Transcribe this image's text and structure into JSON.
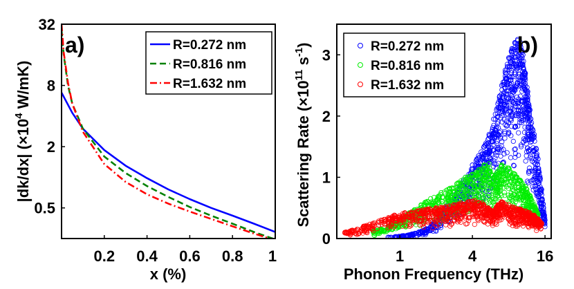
{
  "chart_data": [
    {
      "type": "line",
      "panel_label": "a)",
      "xlabel": "x (%)",
      "ylabel": "|dk/dx| (×10",
      "ylabel_exp": "4",
      "ylabel_unit": " W/mK)",
      "xlim": [
        0,
        1
      ],
      "ylim": [
        0.25,
        32
      ],
      "yscale": "log2",
      "xticks": [
        0.2,
        0.4,
        0.6,
        0.8,
        1
      ],
      "xtick_labels": [
        "0.2",
        "0.4",
        "0.6",
        "0.8",
        "1"
      ],
      "yticks": [
        0.5,
        2,
        8,
        32
      ],
      "ytick_labels": [
        "0.5",
        "2",
        "8",
        "32"
      ],
      "legend_position": "top-right",
      "series": [
        {
          "name": "R=0.272 nm",
          "color": "#0000ff",
          "dash": "solid",
          "x": [
            0.0,
            0.05,
            0.1,
            0.2,
            0.3,
            0.4,
            0.5,
            0.6,
            0.7,
            0.8,
            0.9,
            1.0
          ],
          "y": [
            6.8,
            4.3,
            3.0,
            1.85,
            1.3,
            0.98,
            0.76,
            0.61,
            0.5,
            0.42,
            0.35,
            0.29
          ]
        },
        {
          "name": "R=0.816 nm",
          "color": "#008000",
          "dash": "dashed",
          "x": [
            0.0,
            0.01,
            0.03,
            0.05,
            0.1,
            0.2,
            0.3,
            0.4,
            0.5,
            0.6,
            0.7,
            0.8,
            0.9,
            1.0
          ],
          "y": [
            28,
            16,
            8.0,
            5.3,
            3.0,
            1.6,
            1.1,
            0.82,
            0.64,
            0.51,
            0.42,
            0.35,
            0.29,
            0.245
          ]
        },
        {
          "name": "R=1.632 nm",
          "color": "#ff0000",
          "dash": "dashdot",
          "x": [
            0.0,
            0.01,
            0.03,
            0.05,
            0.1,
            0.2,
            0.3,
            0.4,
            0.5,
            0.6,
            0.7,
            0.8,
            0.9,
            1.0
          ],
          "y": [
            32,
            17,
            8.5,
            5.3,
            2.8,
            1.35,
            0.9,
            0.68,
            0.55,
            0.46,
            0.39,
            0.33,
            0.28,
            0.24
          ]
        }
      ]
    },
    {
      "type": "scatter",
      "panel_label": "b)",
      "xlabel": "Phonon Frequency (THz)",
      "ylabel": "Scattering Rate (×10",
      "ylabel_exp": "11",
      "ylabel_unit": " s",
      "ylabel_exp2": "-1",
      "ylabel_close": ")",
      "xlim": [
        0.3,
        18
      ],
      "xscale": "log2",
      "ylim": [
        0,
        3.5
      ],
      "xticks": [
        1,
        4,
        16
      ],
      "xtick_labels": [
        "1",
        "4",
        "16"
      ],
      "yticks": [
        0,
        1,
        2,
        3
      ],
      "ytick_labels": [
        "0",
        "1",
        "2",
        "3"
      ],
      "legend_position": "top-left",
      "series": [
        {
          "name": "R=0.272 nm",
          "color": "#0000ff",
          "x": [
            0.8,
            1.2,
            1.6,
            2.0,
            2.5,
            3.0,
            3.5,
            4.0,
            4.5,
            5.0,
            5.5,
            6.0,
            6.5,
            7.0,
            7.5,
            8.0,
            8.5,
            9.0,
            9.5,
            10.0,
            10.5,
            11.0,
            11.5,
            12.0,
            13.0,
            14.0,
            15.0,
            16.0
          ],
          "y": [
            0.02,
            0.06,
            0.14,
            0.3,
            0.55,
            0.8,
            1.0,
            1.2,
            1.35,
            1.5,
            1.7,
            1.95,
            2.2,
            2.5,
            2.75,
            2.95,
            3.1,
            3.2,
            3.25,
            3.2,
            3.0,
            2.7,
            2.4,
            2.1,
            1.7,
            1.3,
            0.8,
            0.3
          ]
        },
        {
          "name": "R=0.816 nm",
          "color": "#00ee00",
          "x": [
            0.6,
            0.8,
            1.0,
            1.2,
            1.5,
            1.8,
            2.2,
            2.6,
            3.0,
            3.5,
            4.0,
            4.5,
            5.0,
            5.5,
            6.0,
            6.5,
            7.0,
            8.0,
            9.0,
            10.0,
            11.0,
            12.0,
            13.0,
            14.0
          ],
          "y": [
            0.12,
            0.2,
            0.3,
            0.42,
            0.55,
            0.65,
            0.75,
            0.82,
            0.9,
            1.0,
            1.05,
            1.12,
            1.2,
            1.22,
            1.0,
            1.1,
            1.2,
            1.15,
            1.05,
            0.95,
            0.85,
            0.7,
            0.55,
            0.4
          ]
        },
        {
          "name": "R=1.632 nm",
          "color": "#ff0000",
          "x": [
            0.35,
            0.5,
            0.7,
            0.9,
            1.1,
            1.4,
            1.7,
            2.0,
            2.4,
            2.8,
            3.2,
            3.7,
            4.2,
            4.8,
            5.4,
            6.0,
            6.5,
            7.0,
            8.0,
            9.0,
            10.0,
            11.0,
            12.0,
            13.0,
            14.0,
            15.0
          ],
          "y": [
            0.1,
            0.2,
            0.3,
            0.38,
            0.42,
            0.45,
            0.48,
            0.5,
            0.52,
            0.55,
            0.58,
            0.6,
            0.62,
            0.58,
            0.5,
            0.45,
            0.55,
            0.6,
            0.55,
            0.5,
            0.48,
            0.45,
            0.42,
            0.38,
            0.32,
            0.25
          ]
        }
      ]
    }
  ]
}
